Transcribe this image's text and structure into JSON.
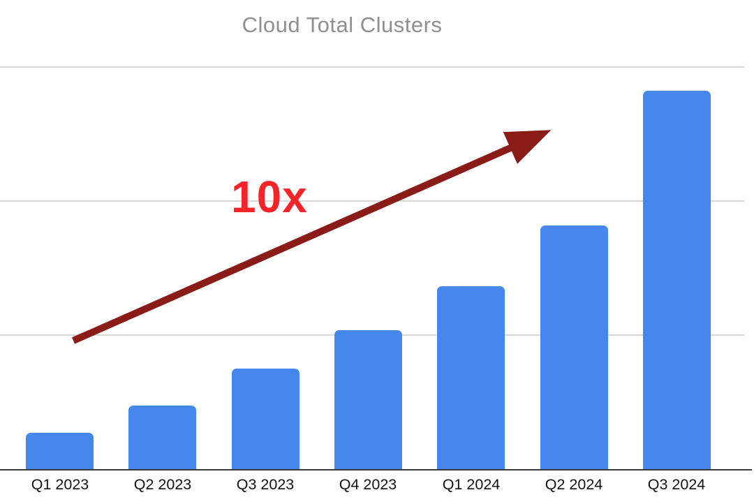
{
  "chart_data": {
    "type": "bar",
    "title": "Cloud Total Clusters",
    "categories": [
      "Q1 2023",
      "Q2 2023",
      "Q3 2023",
      "Q4 2023",
      "Q1 2024",
      "Q2 2024",
      "Q3 2024"
    ],
    "values": [
      1.0,
      1.75,
      2.77,
      3.83,
      5.04,
      6.71,
      10.42
    ],
    "values_note": "y-axis has no visible tick labels; values estimated from bar heights, normalized to Q1 2023 = 1 (consistent with the 10x annotation)",
    "xlabel": "",
    "ylabel": "",
    "ylim": [
      0,
      11.1
    ],
    "grid": "3 horizontal unlabeled gridlines at equal intervals plus dark baseline",
    "legend": "none",
    "annotation": {
      "text": "10x",
      "text_color": "#f62328",
      "arrow_color": "#8b1b16",
      "description": "dark red straight arrow rising from above the Q1 2023 bar toward the upper right, labeled 10x"
    }
  },
  "colors": {
    "bar": "#4587ec",
    "title": "#8f8f8f",
    "gridline": "#d9d9d9",
    "axis": "#3c3c3c",
    "tick_label": "#111111",
    "background": "#ffffff"
  }
}
